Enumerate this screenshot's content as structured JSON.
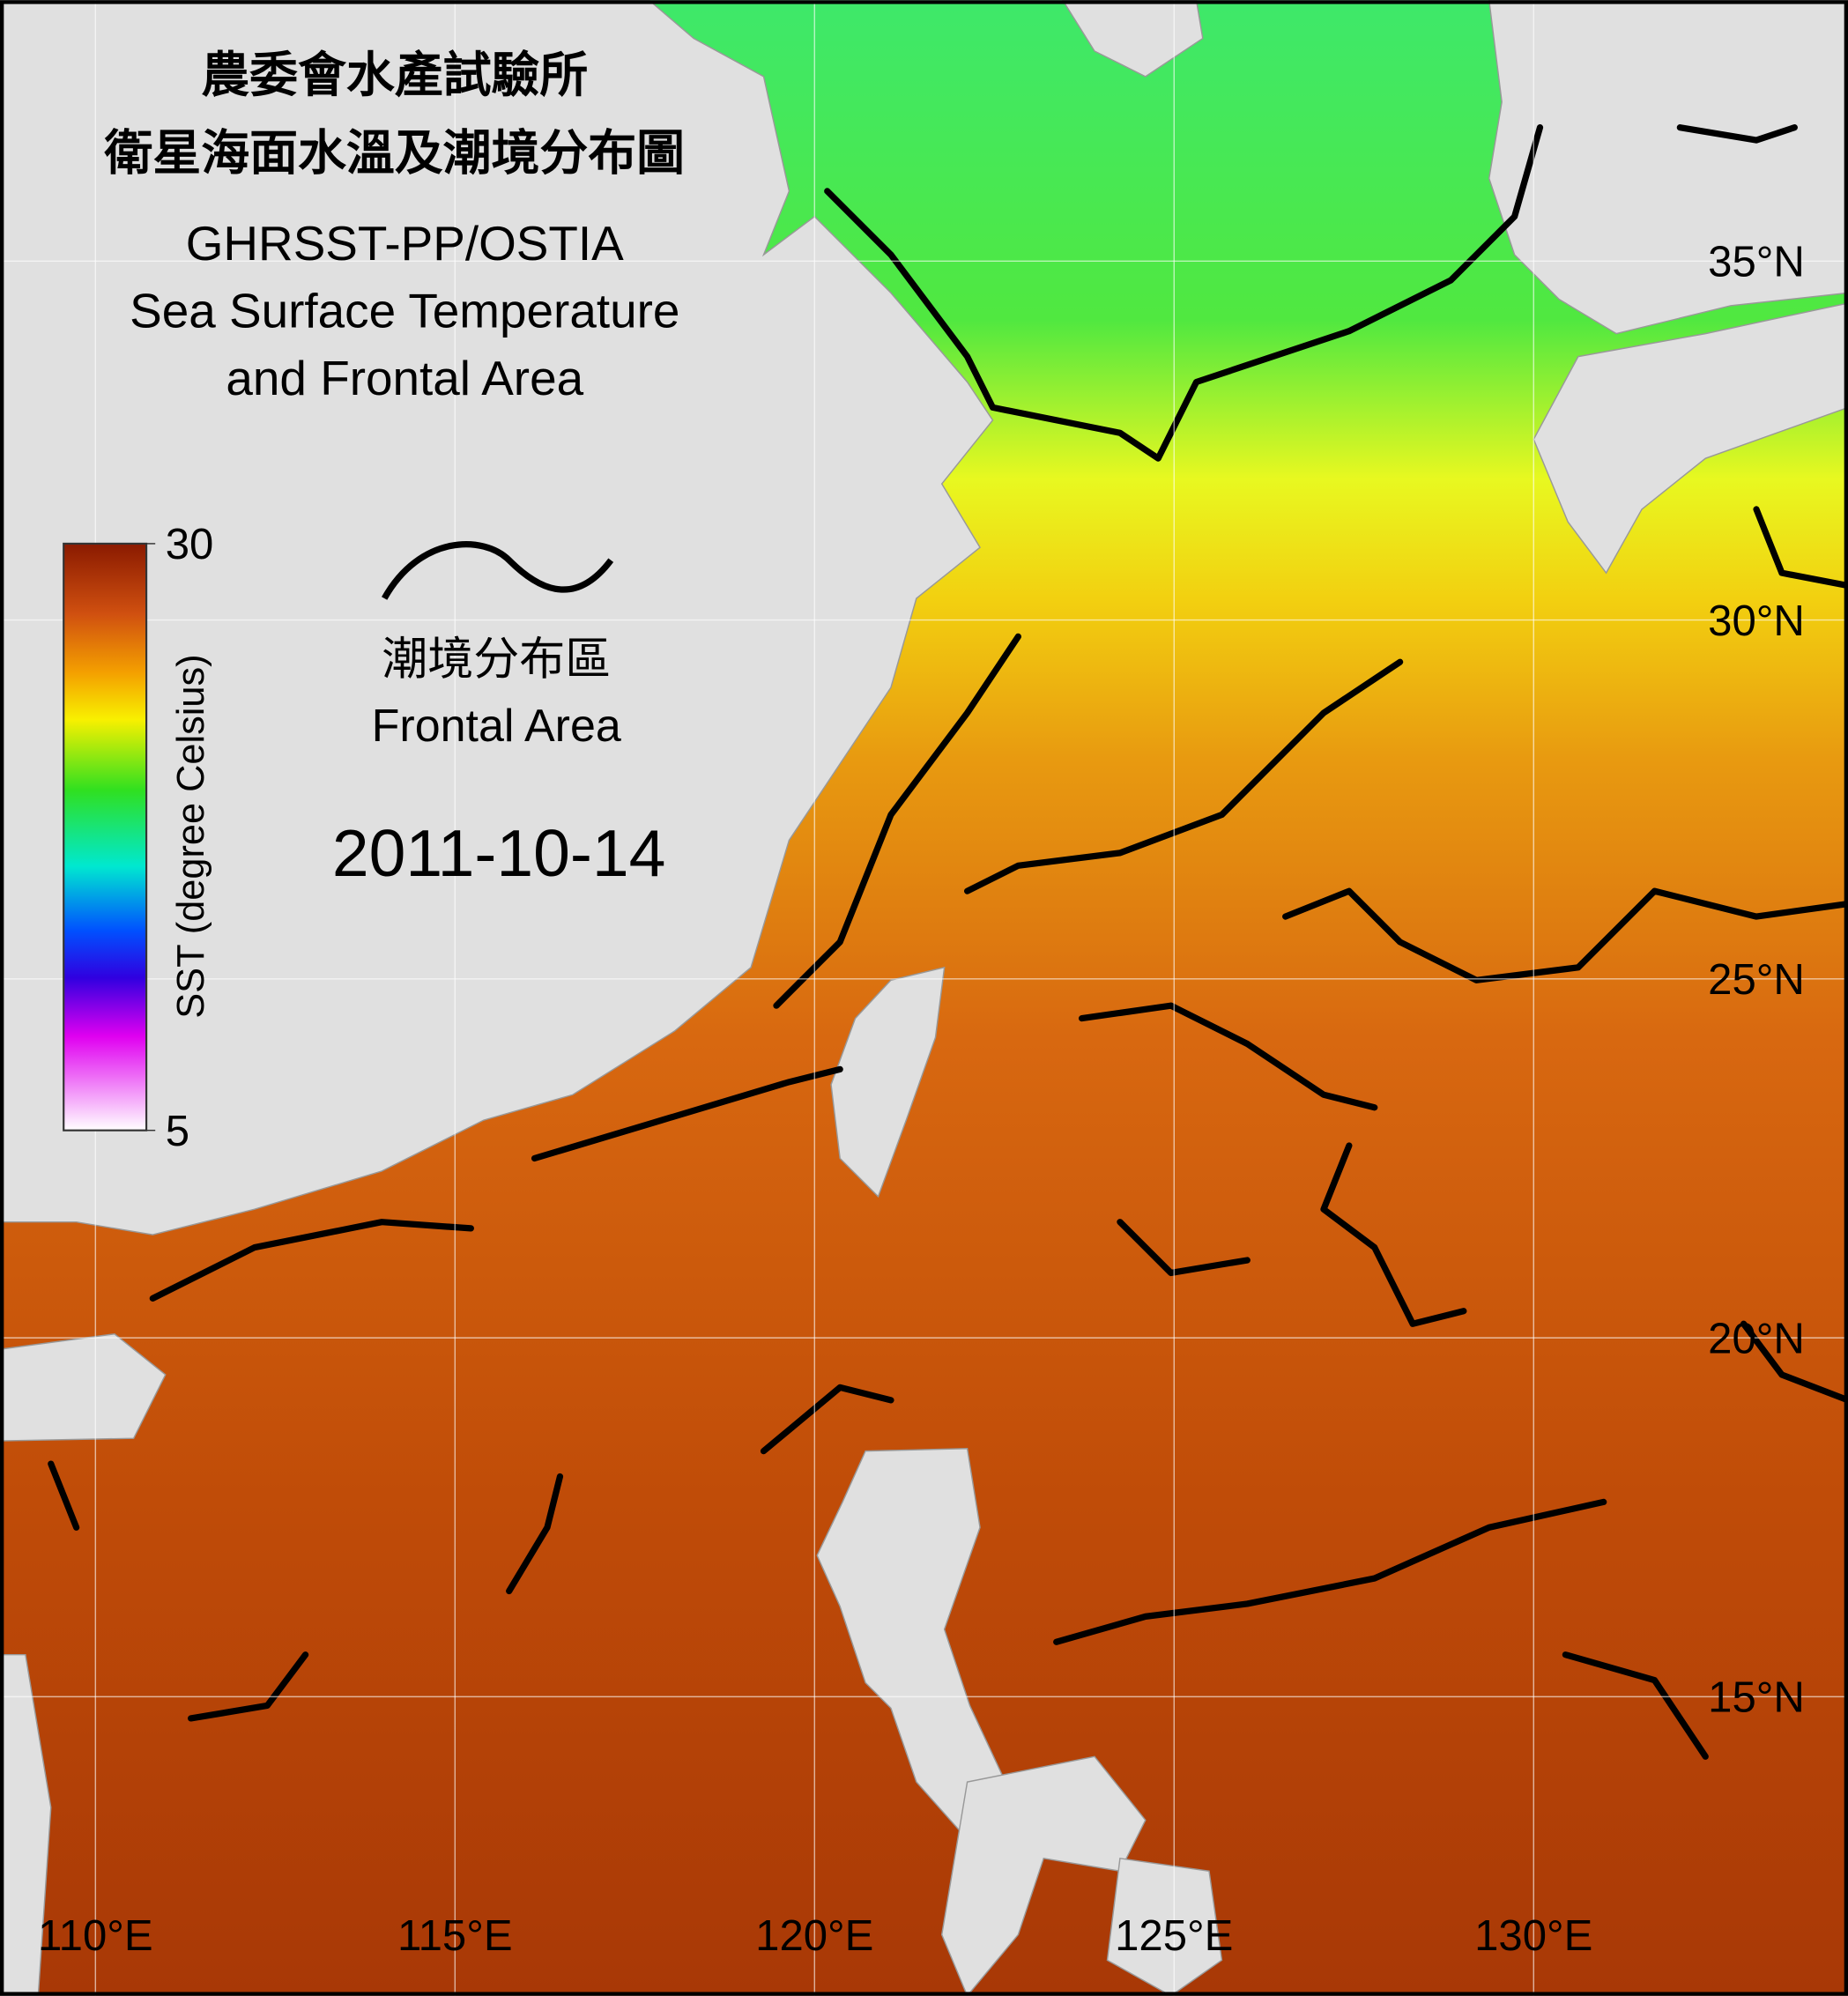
{
  "map": {
    "title_lines": [
      "農委會水產試驗所",
      "衛星海面水溫及潮境分布圖",
      "GHRSST-PP/OSTIA",
      "Sea Surface Temperature",
      "and Frontal Area"
    ],
    "date": "2011-10-14",
    "legend": {
      "label_zh": "潮境分布區",
      "label_en": "Frontal Area"
    },
    "colorbar": {
      "label": "SST (degree Celsius)",
      "lim": [
        5,
        30
      ],
      "ticks": [
        5,
        30
      ]
    },
    "lon_ticks": [
      {
        "value": 110,
        "label": "110°E"
      },
      {
        "value": 115,
        "label": "115°E"
      },
      {
        "value": 120,
        "label": "120°E"
      },
      {
        "value": 125,
        "label": "125°E"
      },
      {
        "value": 130,
        "label": "130°E"
      }
    ],
    "lat_ticks": [
      {
        "value": 35,
        "label": "35°N"
      },
      {
        "value": 30,
        "label": "30°N"
      },
      {
        "value": 25,
        "label": "25°N"
      },
      {
        "value": 20,
        "label": "20°N"
      },
      {
        "value": 15,
        "label": "15°N"
      }
    ]
  }
}
